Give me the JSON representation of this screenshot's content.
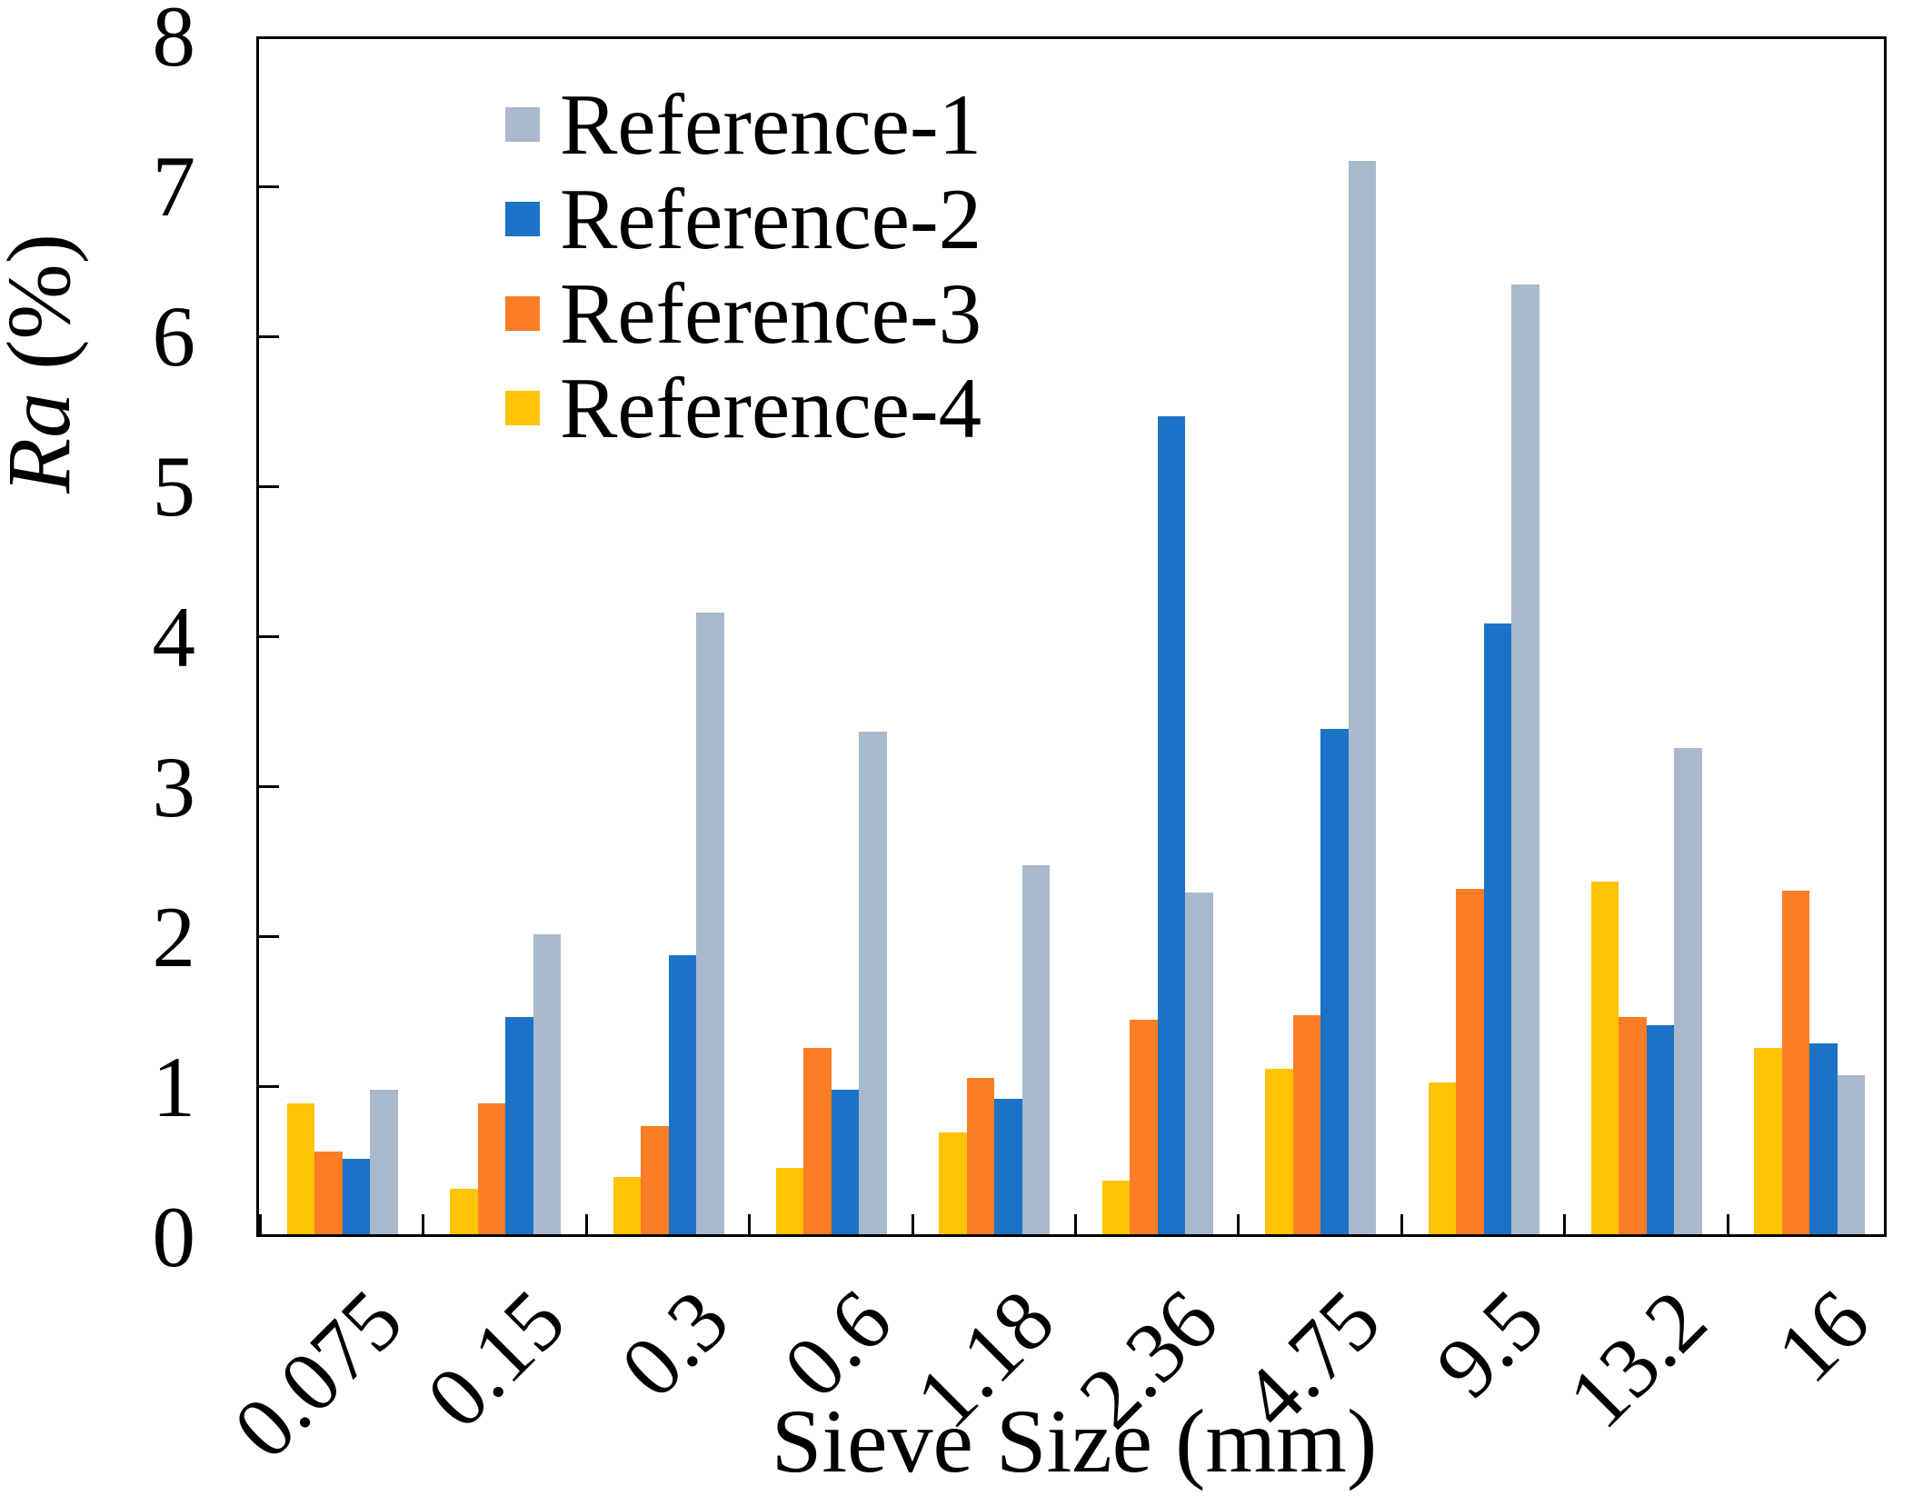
{
  "chart_data": {
    "type": "bar",
    "xlabel": "Sieve Size (mm)",
    "ylabel_italic": "Ra",
    "ylabel_rest": " (%)",
    "ylim": [
      0,
      8
    ],
    "ytick_labels": [
      "0",
      "1",
      "2",
      "3",
      "4",
      "5",
      "6",
      "7",
      "8"
    ],
    "grid": "off",
    "legend_position": "upper-left-inside",
    "categories": [
      "0.075",
      "0.15",
      "0.3",
      "0.6",
      "1.18",
      "2.36",
      "4.75",
      "9.5",
      "13.2",
      "16"
    ],
    "legend_order": [
      "Reference-1",
      "Reference-2",
      "Reference-3",
      "Reference-4"
    ],
    "bar_draw_order": [
      "Reference-4",
      "Reference-3",
      "Reference-2",
      "Reference-1"
    ],
    "series": [
      {
        "name": "Reference-1",
        "color": "#A8B9CC",
        "values": [
          0.96,
          2.0,
          4.14,
          3.35,
          2.46,
          2.28,
          7.15,
          6.33,
          3.24,
          1.06
        ]
      },
      {
        "name": "Reference-2",
        "color": "#1C72C6",
        "values": [
          0.5,
          1.45,
          1.86,
          0.96,
          0.9,
          5.45,
          3.37,
          4.07,
          1.39,
          1.27
        ]
      },
      {
        "name": "Reference-3",
        "color": "#FC7D25",
        "values": [
          0.55,
          0.87,
          0.72,
          1.24,
          1.04,
          1.43,
          1.46,
          2.3,
          1.45,
          2.29
        ]
      },
      {
        "name": "Reference-4",
        "color": "#FEC303",
        "values": [
          0.87,
          0.3,
          0.38,
          0.44,
          0.68,
          0.36,
          1.1,
          1.01,
          2.35,
          1.24
        ]
      }
    ]
  },
  "colors": {
    "axis": "#000000",
    "background": "#ffffff",
    "reference1": "#A8B9CC",
    "reference2": "#1C72C6",
    "reference3": "#FC7D25",
    "reference4": "#FEC303"
  }
}
